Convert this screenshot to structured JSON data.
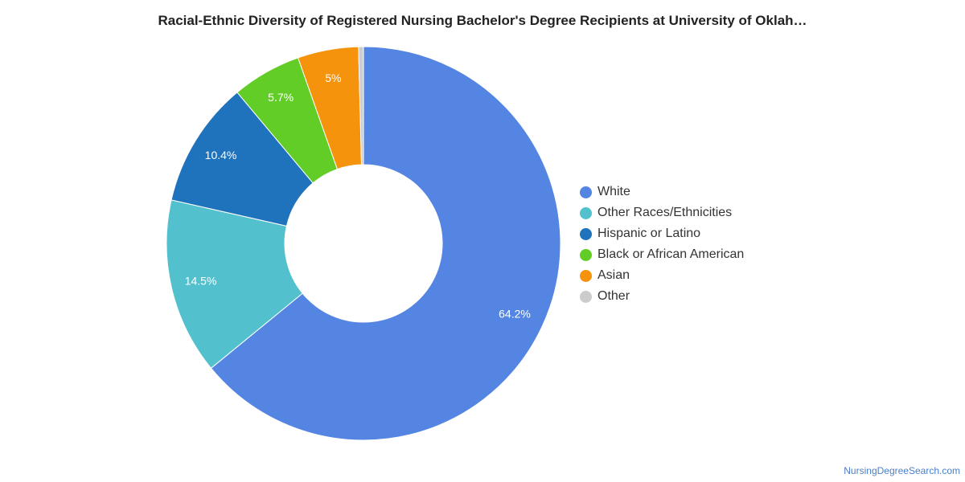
{
  "chart_data": {
    "type": "pie",
    "title": "Racial-Ethnic Diversity of Registered Nursing Bachelor's Degree Recipients at University of Oklah…",
    "donut": true,
    "legend_position": "right",
    "slices": [
      {
        "name": "White",
        "value": 64.2,
        "label": "64.2%",
        "color": "#5485e2"
      },
      {
        "name": "Other Races/Ethnicities",
        "value": 14.5,
        "label": "14.5%",
        "color": "#53c1cd"
      },
      {
        "name": "Hispanic or Latino",
        "value": 10.4,
        "label": "10.4%",
        "color": "#1f72bc"
      },
      {
        "name": "Black or African American",
        "value": 5.7,
        "label": "5.7%",
        "color": "#63cd28"
      },
      {
        "name": "Asian",
        "value": 5.0,
        "label": "5%",
        "color": "#f5930c"
      },
      {
        "name": "Other",
        "value": 0.4,
        "label": "",
        "color": "#cccccc"
      }
    ]
  },
  "watermark": "NursingDegreeSearch.com"
}
